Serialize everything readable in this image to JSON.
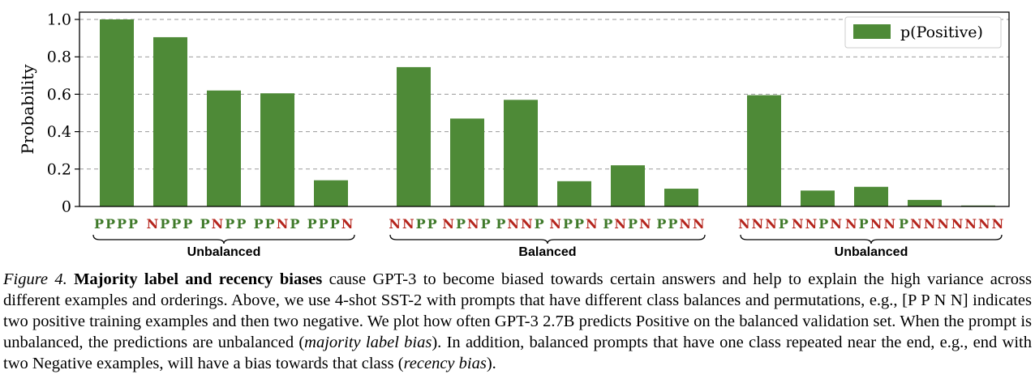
{
  "chart_data": {
    "type": "bar",
    "ylabel": "Probability",
    "ylim": [
      0,
      1.0
    ],
    "yticks": [
      "0",
      "0.2",
      "0.4",
      "0.6",
      "0.8",
      "1.0"
    ],
    "grid": "horizontal-dashed",
    "legend": {
      "placement": "top-right",
      "label": "p(Positive)"
    },
    "bar_color": "#4e8a37",
    "positive_letter_color": "#3f7a2a",
    "negative_letter_color": "#b5251d",
    "groups": [
      {
        "label": "Unbalanced",
        "bars": [
          {
            "label": "PPPP",
            "value": 1.0
          },
          {
            "label": "NPPP",
            "value": 0.905
          },
          {
            "label": "PNPP",
            "value": 0.62
          },
          {
            "label": "PPNP",
            "value": 0.605
          },
          {
            "label": "PPPN",
            "value": 0.14
          }
        ]
      },
      {
        "label": "Balanced",
        "bars": [
          {
            "label": "NNPP",
            "value": 0.745
          },
          {
            "label": "NPNP",
            "value": 0.47
          },
          {
            "label": "PNNP",
            "value": 0.57
          },
          {
            "label": "NPPN",
            "value": 0.135
          },
          {
            "label": "PNPN",
            "value": 0.22
          },
          {
            "label": "PPNN",
            "value": 0.095
          }
        ]
      },
      {
        "label": "Unbalanced",
        "bars": [
          {
            "label": "NNNP",
            "value": 0.595
          },
          {
            "label": "NNPN",
            "value": 0.085
          },
          {
            "label": "NPNN",
            "value": 0.105
          },
          {
            "label": "PNNN",
            "value": 0.035
          },
          {
            "label": "NNNN",
            "value": 0.005
          }
        ]
      }
    ]
  },
  "caption": {
    "figure_label": "Figure 4.",
    "bold_lead": "Majority label and recency biases",
    "text1": " cause GPT-3 to become biased towards certain answers and help to explain the high variance across different examples and orderings. Above, we use 4-shot SST-2 with prompts that have different class balances and permutations, e.g., [P P N N] indicates two positive training examples and then two negative. We plot how often GPT-3 2.7B predicts Positive on the balanced validation set. When the prompt is unbalanced, the predictions are unbalanced (",
    "em1": "majority label bias",
    "text2": "). In addition, balanced prompts that have one class repeated near the end, e.g., end with two Negative examples, will have a bias towards that class (",
    "em2": "recency bias",
    "text3": ")."
  }
}
